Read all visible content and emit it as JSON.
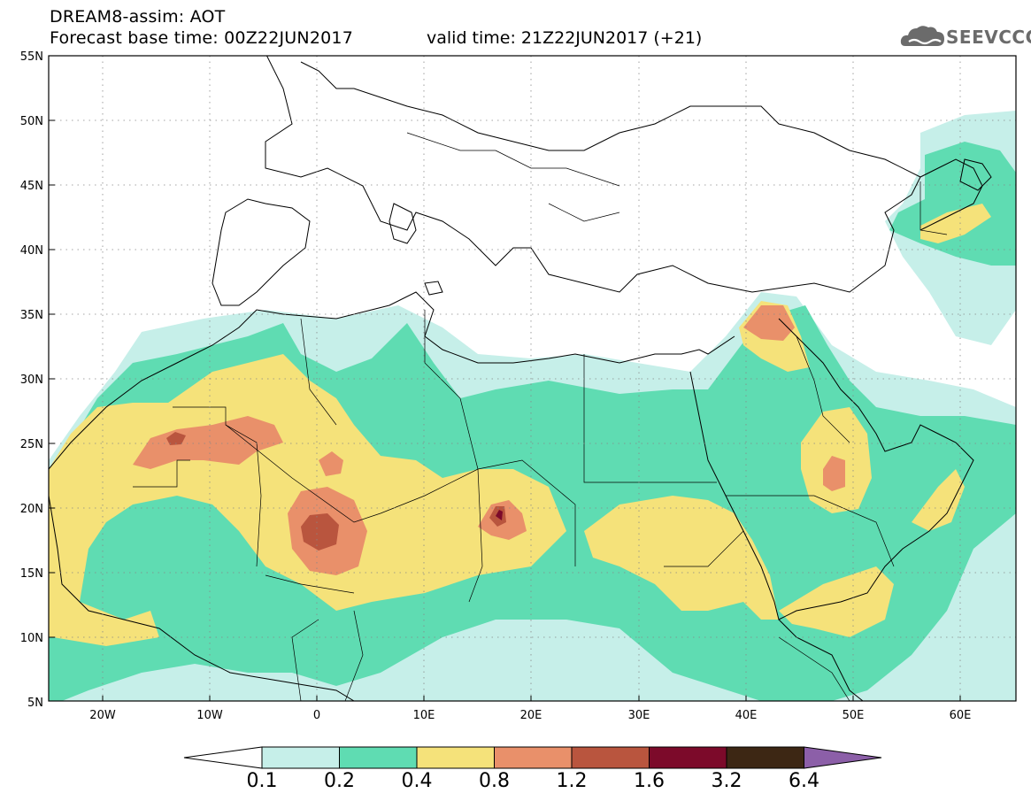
{
  "header": {
    "title": "DREAM8-assim: AOT",
    "base_time": "Forecast base time: 00Z22JUN2017",
    "valid_time": "valid time: 21Z22JUN2017 (+21)"
  },
  "logo": {
    "text": "SEEVCCC",
    "icon": "cloud-icon"
  },
  "map": {
    "lat_labels": [
      "55N",
      "50N",
      "45N",
      "40N",
      "35N",
      "30N",
      "25N",
      "20N",
      "15N",
      "10N",
      "5N"
    ],
    "lon_labels": [
      "20W",
      "10W",
      "0",
      "10E",
      "20E",
      "30E",
      "40E",
      "50E",
      "60E"
    ],
    "lat_range": [
      5,
      55
    ],
    "lon_range": [
      -25,
      65
    ]
  },
  "colorbar": {
    "labels": [
      "0.1",
      "0.2",
      "0.4",
      "0.8",
      "1.2",
      "1.6",
      "3.2",
      "6.4"
    ],
    "colors": [
      "#ffffff",
      "#c6efe9",
      "#5fdcb2",
      "#f5e27a",
      "#e9906a",
      "#b9553e",
      "#7c0a2a",
      "#3d2714",
      "#8c5fa8"
    ]
  },
  "aot_levels": {
    "c01": "#c6efe9",
    "c02": "#5fdcb2",
    "c04": "#f5e27a",
    "c08": "#e9906a",
    "c12": "#b9553e",
    "c16": "#7c0a2a"
  }
}
